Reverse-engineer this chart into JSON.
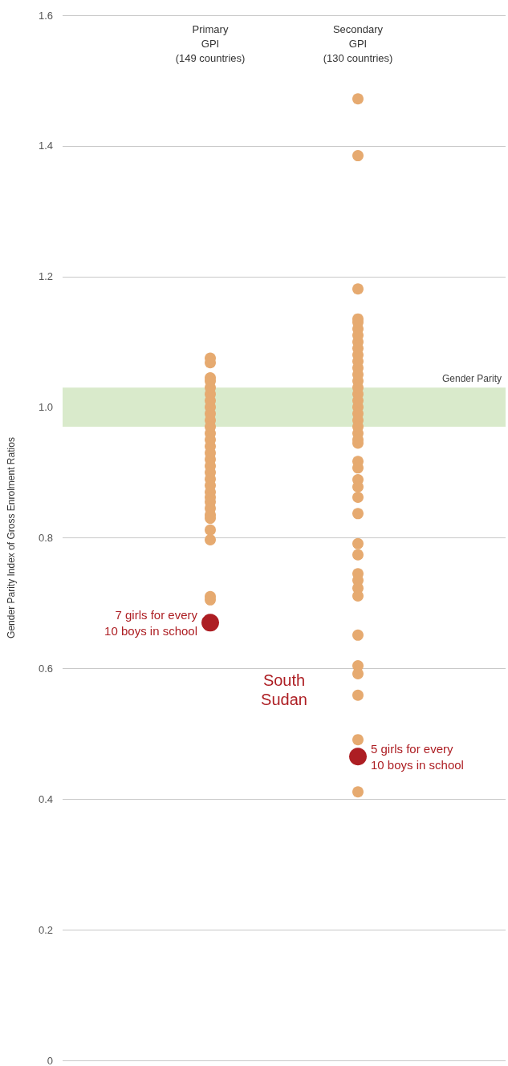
{
  "chart_data": {
    "type": "scatter",
    "ylabel": "Gender Parity Index of Gross Enrolment Ratios",
    "categories": [
      null,
      "Primary\nGPI\n(149 countries)",
      "Secondary\nGPI\n(130 countries)",
      null
    ],
    "series": [
      {
        "color": "#e6aa70",
        "x": [
          "Primary\nGPI\n(149 countries)",
          "Primary\nGPI\n(149 countries)",
          "Primary\nGPI\n(149 countries)",
          "Primary\nGPI\n(149 countries)",
          "Primary\nGPI\n(149 countries)",
          "Primary\nGPI\n(149 countries)",
          "Primary\nGPI\n(149 countries)",
          "Primary\nGPI\n(149 countries)",
          "Primary\nGPI\n(149 countries)",
          "Primary\nGPI\n(149 countries)",
          "Primary\nGPI\n(149 countries)",
          "Primary\nGPI\n(149 countries)",
          "Primary\nGPI\n(149 countries)",
          "Primary\nGPI\n(149 countries)",
          "Primary\nGPI\n(149 countries)",
          "Primary\nGPI\n(149 countries)",
          "Primary\nGPI\n(149 countries)",
          "Primary\nGPI\n(149 countries)",
          "Primary\nGPI\n(149 countries)",
          "Primary\nGPI\n(149 countries)",
          "Primary\nGPI\n(149 countries)",
          "Primary\nGPI\n(149 countries)",
          "Primary\nGPI\n(149 countries)",
          "Primary\nGPI\n(149 countries)",
          "Primary\nGPI\n(149 countries)",
          "Primary\nGPI\n(149 countries)",
          "Primary\nGPI\n(149 countries)",
          "Primary\nGPI\n(149 countries)",
          "Primary\nGPI\n(149 countries)",
          "Primary\nGPI\n(149 countries)",
          "Secondary\nGPI\n(130 countries)",
          "Secondary\nGPI\n(130 countries)",
          "Secondary\nGPI\n(130 countries)",
          "Secondary\nGPI\n(130 countries)",
          "Secondary\nGPI\n(130 countries)",
          "Secondary\nGPI\n(130 countries)",
          "Secondary\nGPI\n(130 countries)",
          "Secondary\nGPI\n(130 countries)",
          "Secondary\nGPI\n(130 countries)",
          "Secondary\nGPI\n(130 countries)",
          "Secondary\nGPI\n(130 countries)",
          "Secondary\nGPI\n(130 countries)",
          "Secondary\nGPI\n(130 countries)",
          "Secondary\nGPI\n(130 countries)",
          "Secondary\nGPI\n(130 countries)",
          "Secondary\nGPI\n(130 countries)",
          "Secondary\nGPI\n(130 countries)",
          "Secondary\nGPI\n(130 countries)",
          "Secondary\nGPI\n(130 countries)",
          "Secondary\nGPI\n(130 countries)",
          "Secondary\nGPI\n(130 countries)",
          "Secondary\nGPI\n(130 countries)",
          "Secondary\nGPI\n(130 countries)",
          "Secondary\nGPI\n(130 countries)",
          "Secondary\nGPI\n(130 countries)",
          "Secondary\nGPI\n(130 countries)",
          "Secondary\nGPI\n(130 countries)",
          "Secondary\nGPI\n(130 countries)",
          "Secondary\nGPI\n(130 countries)",
          "Secondary\nGPI\n(130 countries)",
          "Secondary\nGPI\n(130 countries)",
          "Secondary\nGPI\n(130 countries)",
          "Secondary\nGPI\n(130 countries)",
          "Secondary\nGPI\n(130 countries)",
          "Secondary\nGPI\n(130 countries)",
          "Secondary\nGPI\n(130 countries)",
          "Secondary\nGPI\n(130 countries)",
          "Secondary\nGPI\n(130 countries)",
          "Secondary\nGPI\n(130 countries)",
          "Secondary\nGPI\n(130 countries)",
          "Secondary\nGPI\n(130 countries)",
          "Secondary\nGPI\n(130 countries)"
        ],
        "values": [
          1.075,
          1.068,
          1.04,
          1.02,
          1.0,
          0.98,
          0.96,
          0.94,
          0.92,
          0.91,
          0.9,
          0.89,
          0.88,
          0.87,
          0.862,
          0.855,
          0.845,
          0.835,
          0.83,
          0.812,
          0.797,
          0.71,
          0.705,
          1.03,
          1.01,
          0.99,
          0.97,
          0.95,
          0.93,
          1.045,
          1.472,
          1.385,
          1.181,
          1.135,
          1.12,
          1.1,
          1.08,
          1.06,
          1.04,
          1.02,
          1.0,
          0.98,
          0.96,
          0.945,
          1.13,
          1.11,
          1.09,
          1.07,
          1.05,
          1.03,
          1.01,
          0.99,
          0.97,
          0.95,
          0.917,
          0.907,
          0.889,
          0.878,
          0.862,
          0.837,
          0.791,
          0.774,
          0.745,
          0.735,
          0.723,
          0.711,
          0.651,
          0.604,
          0.592,
          0.559,
          0.491,
          0.411
        ]
      },
      {
        "name": "South Sudan",
        "color": "#ad1e23",
        "x": [
          "Primary\nGPI\n(149 countries)",
          "Secondary\nGPI\n(130 countries)"
        ],
        "values": [
          0.67,
          0.465
        ]
      }
    ],
    "ylim": [
      0,
      1.6
    ],
    "yticks": [
      0,
      0.2,
      0.4,
      0.6,
      0.8,
      {
        "value": 1,
        "label": "1.0"
      },
      1.2,
      1.4,
      1.6
    ],
    "grid": "y",
    "legend": false,
    "marker": "circle",
    "bands": [
      {
        "axis": "y",
        "from": 0.97,
        "to": 1.03,
        "label": "Gender Parity",
        "color": "#d9eacb"
      }
    ],
    "annotations": [
      {
        "text": "7 girls for every\n10 boys in school",
        "x": "Primary\nGPI\n(149 countries)",
        "y": 0.67
      },
      {
        "text": "5 girls for every\n10 boys in school",
        "x": "Secondary\nGPI\n(130 countries)",
        "y": 0.465
      }
    ]
  }
}
